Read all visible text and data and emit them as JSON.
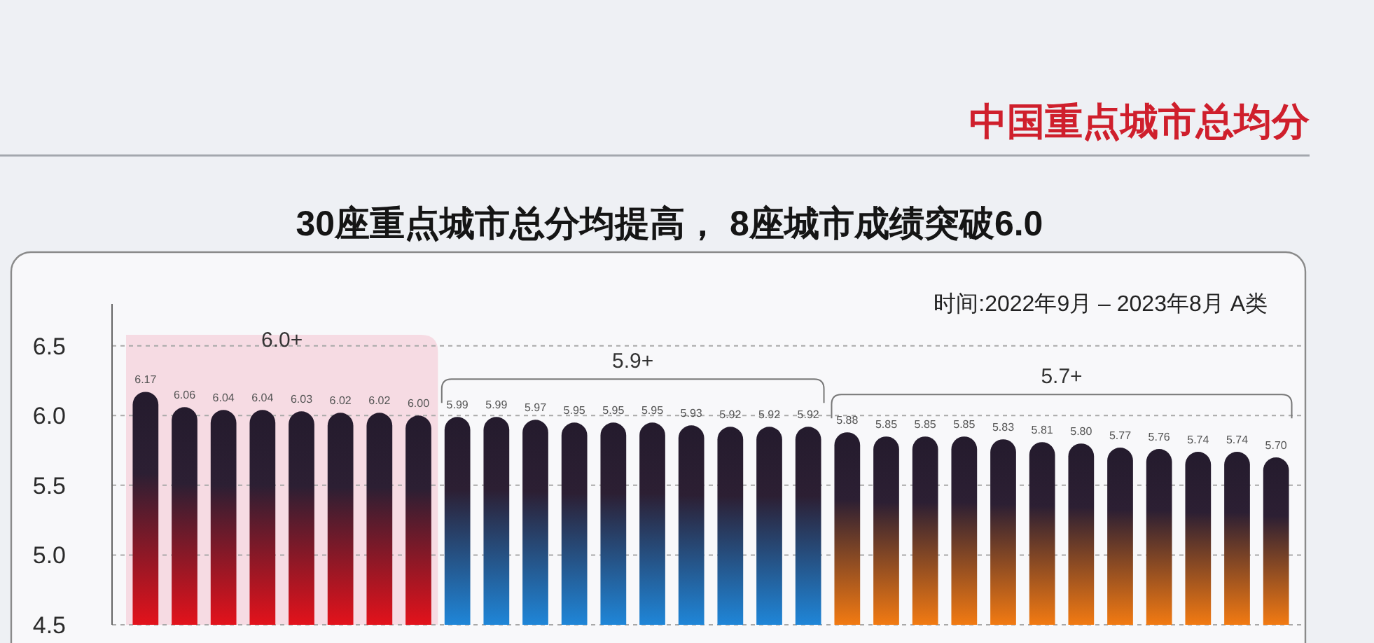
{
  "chart_data": {
    "type": "bar",
    "title": "中国重点城市总均分",
    "subtitle": "30座重点城市总分均提高， 8座城市成绩突破6.0",
    "annotations": [
      "时间:2022年9月 – 2023年8月 A类"
    ],
    "categories": [
      null,
      null,
      null,
      null,
      null,
      null,
      null,
      null,
      null,
      null,
      null,
      null,
      null,
      null,
      null,
      null,
      null,
      null,
      null,
      null,
      null,
      null,
      null,
      null,
      null,
      null,
      null,
      null,
      null,
      null
    ],
    "series": [
      {
        "name": "6.0+",
        "color": "#e3121b",
        "values": [
          6.17,
          6.06,
          6.04,
          6.04,
          6.03,
          6.02,
          6.02,
          6.0,
          null,
          null,
          null,
          null,
          null,
          null,
          null,
          null,
          null,
          null,
          null,
          null,
          null,
          null,
          null,
          null,
          null,
          null,
          null,
          null,
          null,
          null
        ],
        "value_labels": [
          "6.17",
          "6.06",
          "6.04",
          "6.04",
          "6.03",
          "6.02",
          "6.02",
          "6.00",
          null,
          null,
          null,
          null,
          null,
          null,
          null,
          null,
          null,
          null,
          null,
          null,
          null,
          null,
          null,
          null,
          null,
          null,
          null,
          null,
          null,
          null
        ]
      },
      {
        "name": "5.9+",
        "color": "#1f86d8",
        "values": [
          null,
          null,
          null,
          null,
          null,
          null,
          null,
          null,
          5.99,
          5.99,
          5.97,
          5.95,
          5.95,
          5.95,
          5.93,
          5.92,
          5.92,
          5.92,
          null,
          null,
          null,
          null,
          null,
          null,
          null,
          null,
          null,
          null,
          null,
          null
        ],
        "value_labels": [
          null,
          null,
          null,
          null,
          null,
          null,
          null,
          null,
          "5.99",
          "5.99",
          "5.97",
          "5.95",
          "5.95",
          "5.95",
          "5.93",
          "5.92",
          "5.92",
          "5.92",
          null,
          null,
          null,
          null,
          null,
          null,
          null,
          null,
          null,
          null,
          null,
          null
        ]
      },
      {
        "name": "5.7+",
        "color": "#f27a12",
        "values": [
          null,
          null,
          null,
          null,
          null,
          null,
          null,
          null,
          null,
          null,
          null,
          null,
          null,
          null,
          null,
          null,
          null,
          null,
          5.88,
          5.85,
          5.85,
          5.85,
          5.83,
          5.81,
          5.8,
          5.77,
          5.76,
          5.74,
          5.74,
          5.7
        ],
        "value_labels": [
          null,
          null,
          null,
          null,
          null,
          null,
          null,
          null,
          null,
          null,
          null,
          null,
          null,
          null,
          null,
          null,
          null,
          null,
          "5.88",
          "5.85",
          "5.85",
          "5.85",
          "5.83",
          "5.81",
          "5.80",
          "5.77",
          "5.76",
          "5.74",
          "5.74",
          "5.70"
        ]
      }
    ],
    "ylim": [
      4.5,
      6.8
    ],
    "yticks": [
      4.5,
      {
        "value": 5,
        "label": "5.0"
      },
      5.5,
      {
        "value": 6,
        "label": "6.0"
      },
      6.5
    ],
    "grid": "y"
  }
}
